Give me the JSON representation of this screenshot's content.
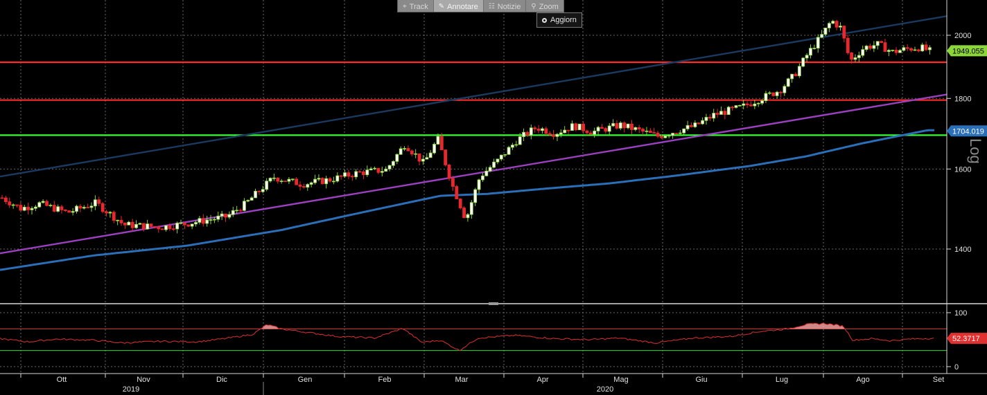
{
  "toolbar": {
    "items": [
      {
        "label": "Track",
        "icon": "crosshair-icon",
        "glyph": "⌖"
      },
      {
        "label": "Annotare",
        "icon": "pencil-icon",
        "glyph": "✎"
      },
      {
        "label": "Notizie",
        "icon": "news-icon",
        "glyph": "☷"
      },
      {
        "label": "Zoom",
        "icon": "magnifier-icon",
        "glyph": "⚲"
      }
    ],
    "active_index": 1
  },
  "refresh_button": {
    "label": "Aggiorn"
  },
  "chart_data": [
    {
      "type": "candlestick",
      "scale": "log",
      "scale_label": "Log",
      "ylim": [
        1300,
        2100
      ],
      "y_ticks": [
        "1400",
        "1600",
        "1800",
        "2000"
      ],
      "x_labels": [
        "Ott",
        "Nov",
        "Dic",
        "Gen",
        "Feb",
        "Mar",
        "Apr",
        "Mag",
        "Giu",
        "Lug",
        "Ago",
        "Set"
      ],
      "year_labels": [
        "2019",
        "2020"
      ],
      "last_price": "1949.055",
      "ma_value": "1704.019",
      "horizontal_lines": [
        {
          "value": 1912,
          "color": "#ff2a2a"
        },
        {
          "value": 1795,
          "color": "#ff2a2a"
        },
        {
          "value": 1693,
          "color": "#33ff33"
        }
      ],
      "trendlines": [
        {
          "color": "#1a3a60",
          "from": [
            0,
            1580
          ],
          "to": [
            1,
            2065
          ]
        },
        {
          "color": "#9b40c0",
          "from": [
            0,
            1390
          ],
          "to": [
            1,
            1812
          ]
        }
      ],
      "close_anchors": [
        [
          0,
          1525
        ],
        [
          0.02,
          1498
        ],
        [
          0.04,
          1510
        ],
        [
          0.07,
          1488
        ],
        [
          0.1,
          1512
        ],
        [
          0.13,
          1458
        ],
        [
          0.17,
          1452
        ],
        [
          0.2,
          1462
        ],
        [
          0.24,
          1478
        ],
        [
          0.26,
          1510
        ],
        [
          0.29,
          1578
        ],
        [
          0.32,
          1560
        ],
        [
          0.35,
          1572
        ],
        [
          0.38,
          1590
        ],
        [
          0.41,
          1598
        ],
        [
          0.43,
          1668
        ],
        [
          0.45,
          1615
        ],
        [
          0.465,
          1682
        ],
        [
          0.48,
          1560
        ],
        [
          0.495,
          1470
        ],
        [
          0.51,
          1580
        ],
        [
          0.53,
          1625
        ],
        [
          0.55,
          1680
        ],
        [
          0.57,
          1715
        ],
        [
          0.59,
          1698
        ],
        [
          0.61,
          1720
        ],
        [
          0.63,
          1702
        ],
        [
          0.66,
          1722
        ],
        [
          0.7,
          1690
        ],
        [
          0.72,
          1705
        ],
        [
          0.74,
          1720
        ],
        [
          0.76,
          1752
        ],
        [
          0.79,
          1775
        ],
        [
          0.81,
          1800
        ],
        [
          0.83,
          1825
        ],
        [
          0.845,
          1870
        ],
        [
          0.86,
          1940
        ],
        [
          0.875,
          2000
        ],
        [
          0.885,
          2050
        ],
        [
          0.895,
          2025
        ],
        [
          0.905,
          1915
        ],
        [
          0.92,
          1960
        ],
        [
          0.935,
          1970
        ],
        [
          0.95,
          1945
        ],
        [
          0.965,
          1955
        ],
        [
          0.98,
          1960
        ],
        [
          0.99,
          1948
        ]
      ],
      "ma_anchors": [
        [
          0,
          1352
        ],
        [
          0.1,
          1385
        ],
        [
          0.2,
          1408
        ],
        [
          0.3,
          1445
        ],
        [
          0.4,
          1495
        ],
        [
          0.47,
          1530
        ],
        [
          0.52,
          1535
        ],
        [
          0.58,
          1548
        ],
        [
          0.65,
          1562
        ],
        [
          0.72,
          1582
        ],
        [
          0.8,
          1608
        ],
        [
          0.86,
          1634
        ],
        [
          0.92,
          1670
        ],
        [
          0.99,
          1707
        ]
      ]
    },
    {
      "type": "line",
      "indicator": "RSI",
      "ylim": [
        0,
        100
      ],
      "y_ticks": [
        "0",
        "100"
      ],
      "overbought": 70,
      "oversold": 30,
      "last_value": "52.3717",
      "anchors": [
        [
          0,
          52
        ],
        [
          0.03,
          46
        ],
        [
          0.06,
          51
        ],
        [
          0.1,
          49
        ],
        [
          0.13,
          44
        ],
        [
          0.17,
          47
        ],
        [
          0.21,
          46
        ],
        [
          0.24,
          52
        ],
        [
          0.27,
          60
        ],
        [
          0.285,
          78
        ],
        [
          0.3,
          70
        ],
        [
          0.33,
          63
        ],
        [
          0.36,
          56
        ],
        [
          0.4,
          53
        ],
        [
          0.43,
          71
        ],
        [
          0.45,
          45
        ],
        [
          0.47,
          49
        ],
        [
          0.49,
          30
        ],
        [
          0.51,
          53
        ],
        [
          0.55,
          58
        ],
        [
          0.59,
          52
        ],
        [
          0.63,
          50
        ],
        [
          0.66,
          53
        ],
        [
          0.7,
          44
        ],
        [
          0.74,
          53
        ],
        [
          0.78,
          56
        ],
        [
          0.81,
          65
        ],
        [
          0.84,
          70
        ],
        [
          0.86,
          78
        ],
        [
          0.88,
          80
        ],
        [
          0.9,
          75
        ],
        [
          0.91,
          49
        ],
        [
          0.93,
          52
        ],
        [
          0.95,
          48
        ],
        [
          0.97,
          51
        ],
        [
          0.99,
          52.4
        ]
      ]
    }
  ]
}
